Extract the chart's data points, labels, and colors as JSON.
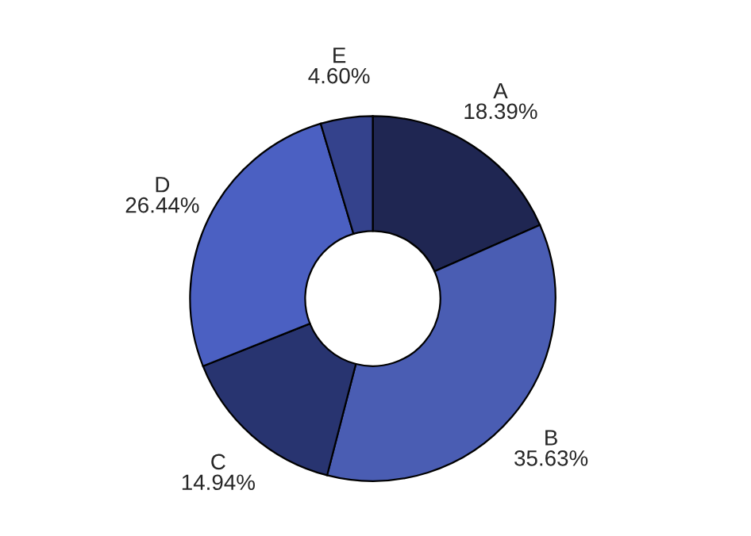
{
  "chart_data": {
    "type": "donut",
    "categories": [
      "A",
      "B",
      "C",
      "D",
      "E"
    ],
    "values": [
      18.39,
      35.63,
      14.94,
      26.44,
      4.6
    ],
    "value_labels": [
      "18.39%",
      "35.63%",
      "14.94%",
      "26.44%",
      "4.60%"
    ],
    "colors": [
      "#1f2652",
      "#4a5db3",
      "#283470",
      "#4b60c2",
      "#34428c"
    ]
  }
}
